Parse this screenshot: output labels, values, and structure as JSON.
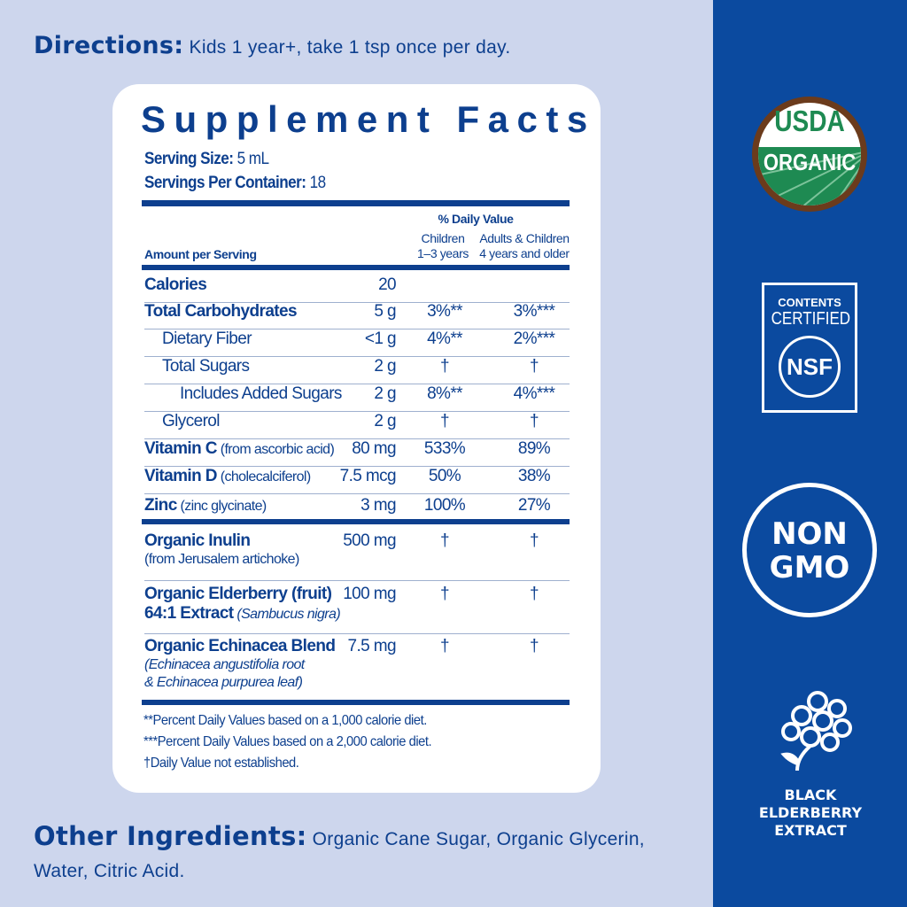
{
  "directions": {
    "label": "Directions:",
    "text": " Kids 1 year+, take 1 tsp once per day."
  },
  "facts": {
    "title": "Supplement Facts",
    "serving_size_label": "Serving Size:",
    "serving_size": " 5 mL",
    "servings_label": "Servings Per Container:",
    "servings": " 18",
    "dv_header": "% Daily Value",
    "col_children": "Children",
    "col_children_sub": "1–3 years",
    "col_adults": "Adults & Children",
    "col_adults_sub": "4 years and older",
    "amount_header": "Amount per Serving",
    "rows": [
      {
        "name": "Calories",
        "bold": true,
        "indent": 0,
        "amount": "20",
        "children": "",
        "adults": ""
      },
      {
        "name": "Total Carbohydrates",
        "bold": true,
        "indent": 0,
        "amount": "5 g",
        "children": "3%**",
        "adults": "3%***"
      },
      {
        "name": "Dietary Fiber",
        "bold": false,
        "indent": 1,
        "amount": "<1 g",
        "children": "4%**",
        "adults": "2%***"
      },
      {
        "name": "Total Sugars",
        "bold": false,
        "indent": 1,
        "amount": "2 g",
        "children": "†",
        "adults": "†"
      },
      {
        "name": "Includes Added Sugars",
        "bold": false,
        "indent": 2,
        "amount": "2 g",
        "children": "8%**",
        "adults": "4%***"
      },
      {
        "name": "Glycerol",
        "bold": false,
        "indent": 1,
        "amount": "2 g",
        "children": "†",
        "adults": "†"
      },
      {
        "name": "Vitamin C",
        "note": " (from ascorbic acid)",
        "bold": true,
        "indent": 0,
        "amount": "80 mg",
        "children": "533%",
        "adults": "89%"
      },
      {
        "name": "Vitamin D",
        "note": " (cholecalciferol)",
        "bold": true,
        "indent": 0,
        "amount": "7.5 mcg",
        "children": "50%",
        "adults": "38%"
      },
      {
        "name": "Zinc",
        "note": " (zinc glycinate)",
        "bold": true,
        "indent": 0,
        "amount": "3 mg",
        "children": "100%",
        "adults": "27%"
      }
    ],
    "botanicals": [
      {
        "name": "Organic Inulin",
        "sub": "(from Jerusalem artichoke)",
        "amount": "500 mg",
        "children": "†",
        "adults": "†"
      },
      {
        "name": "Organic Elderberry (fruit)",
        "name2": "64:1 Extract",
        "sub2": " (Sambucus nigra)",
        "amount": "100 mg",
        "children": "†",
        "adults": "†"
      },
      {
        "name": "Organic Echinacea Blend",
        "sub": "(Echinacea angustifolia root",
        "sub_b": "& Echinacea purpurea leaf)",
        "amount": "7.5 mg",
        "children": "†",
        "adults": "†"
      }
    ],
    "footnotes": [
      "**Percent Daily Values based on a 1,000 calorie diet.",
      "***Percent Daily Values based on a 2,000 calorie diet.",
      "†Daily Value not established."
    ]
  },
  "other": {
    "label": "Other Ingredients:",
    "text": " Organic Cane Sugar, Organic Glycerin, Water, Citric Acid."
  },
  "badges": {
    "usda_top": "USDA",
    "usda_bottom": "ORGANIC",
    "nsf_top": "CONTENTS",
    "nsf_mid": "CERTIFIED",
    "nsf_logo": "NSF",
    "gmo_1": "NON",
    "gmo_2": "GMO",
    "elder_1": "BLACK",
    "elder_2": "ELDERBERRY",
    "elder_3": "EXTRACT"
  },
  "colors": {
    "brand_blue": "#0b4a9f",
    "text_blue": "#0d3f8e",
    "background": "#cdd6ed",
    "usda_green": "#1e8a52",
    "usda_brown": "#6b3b1c"
  }
}
